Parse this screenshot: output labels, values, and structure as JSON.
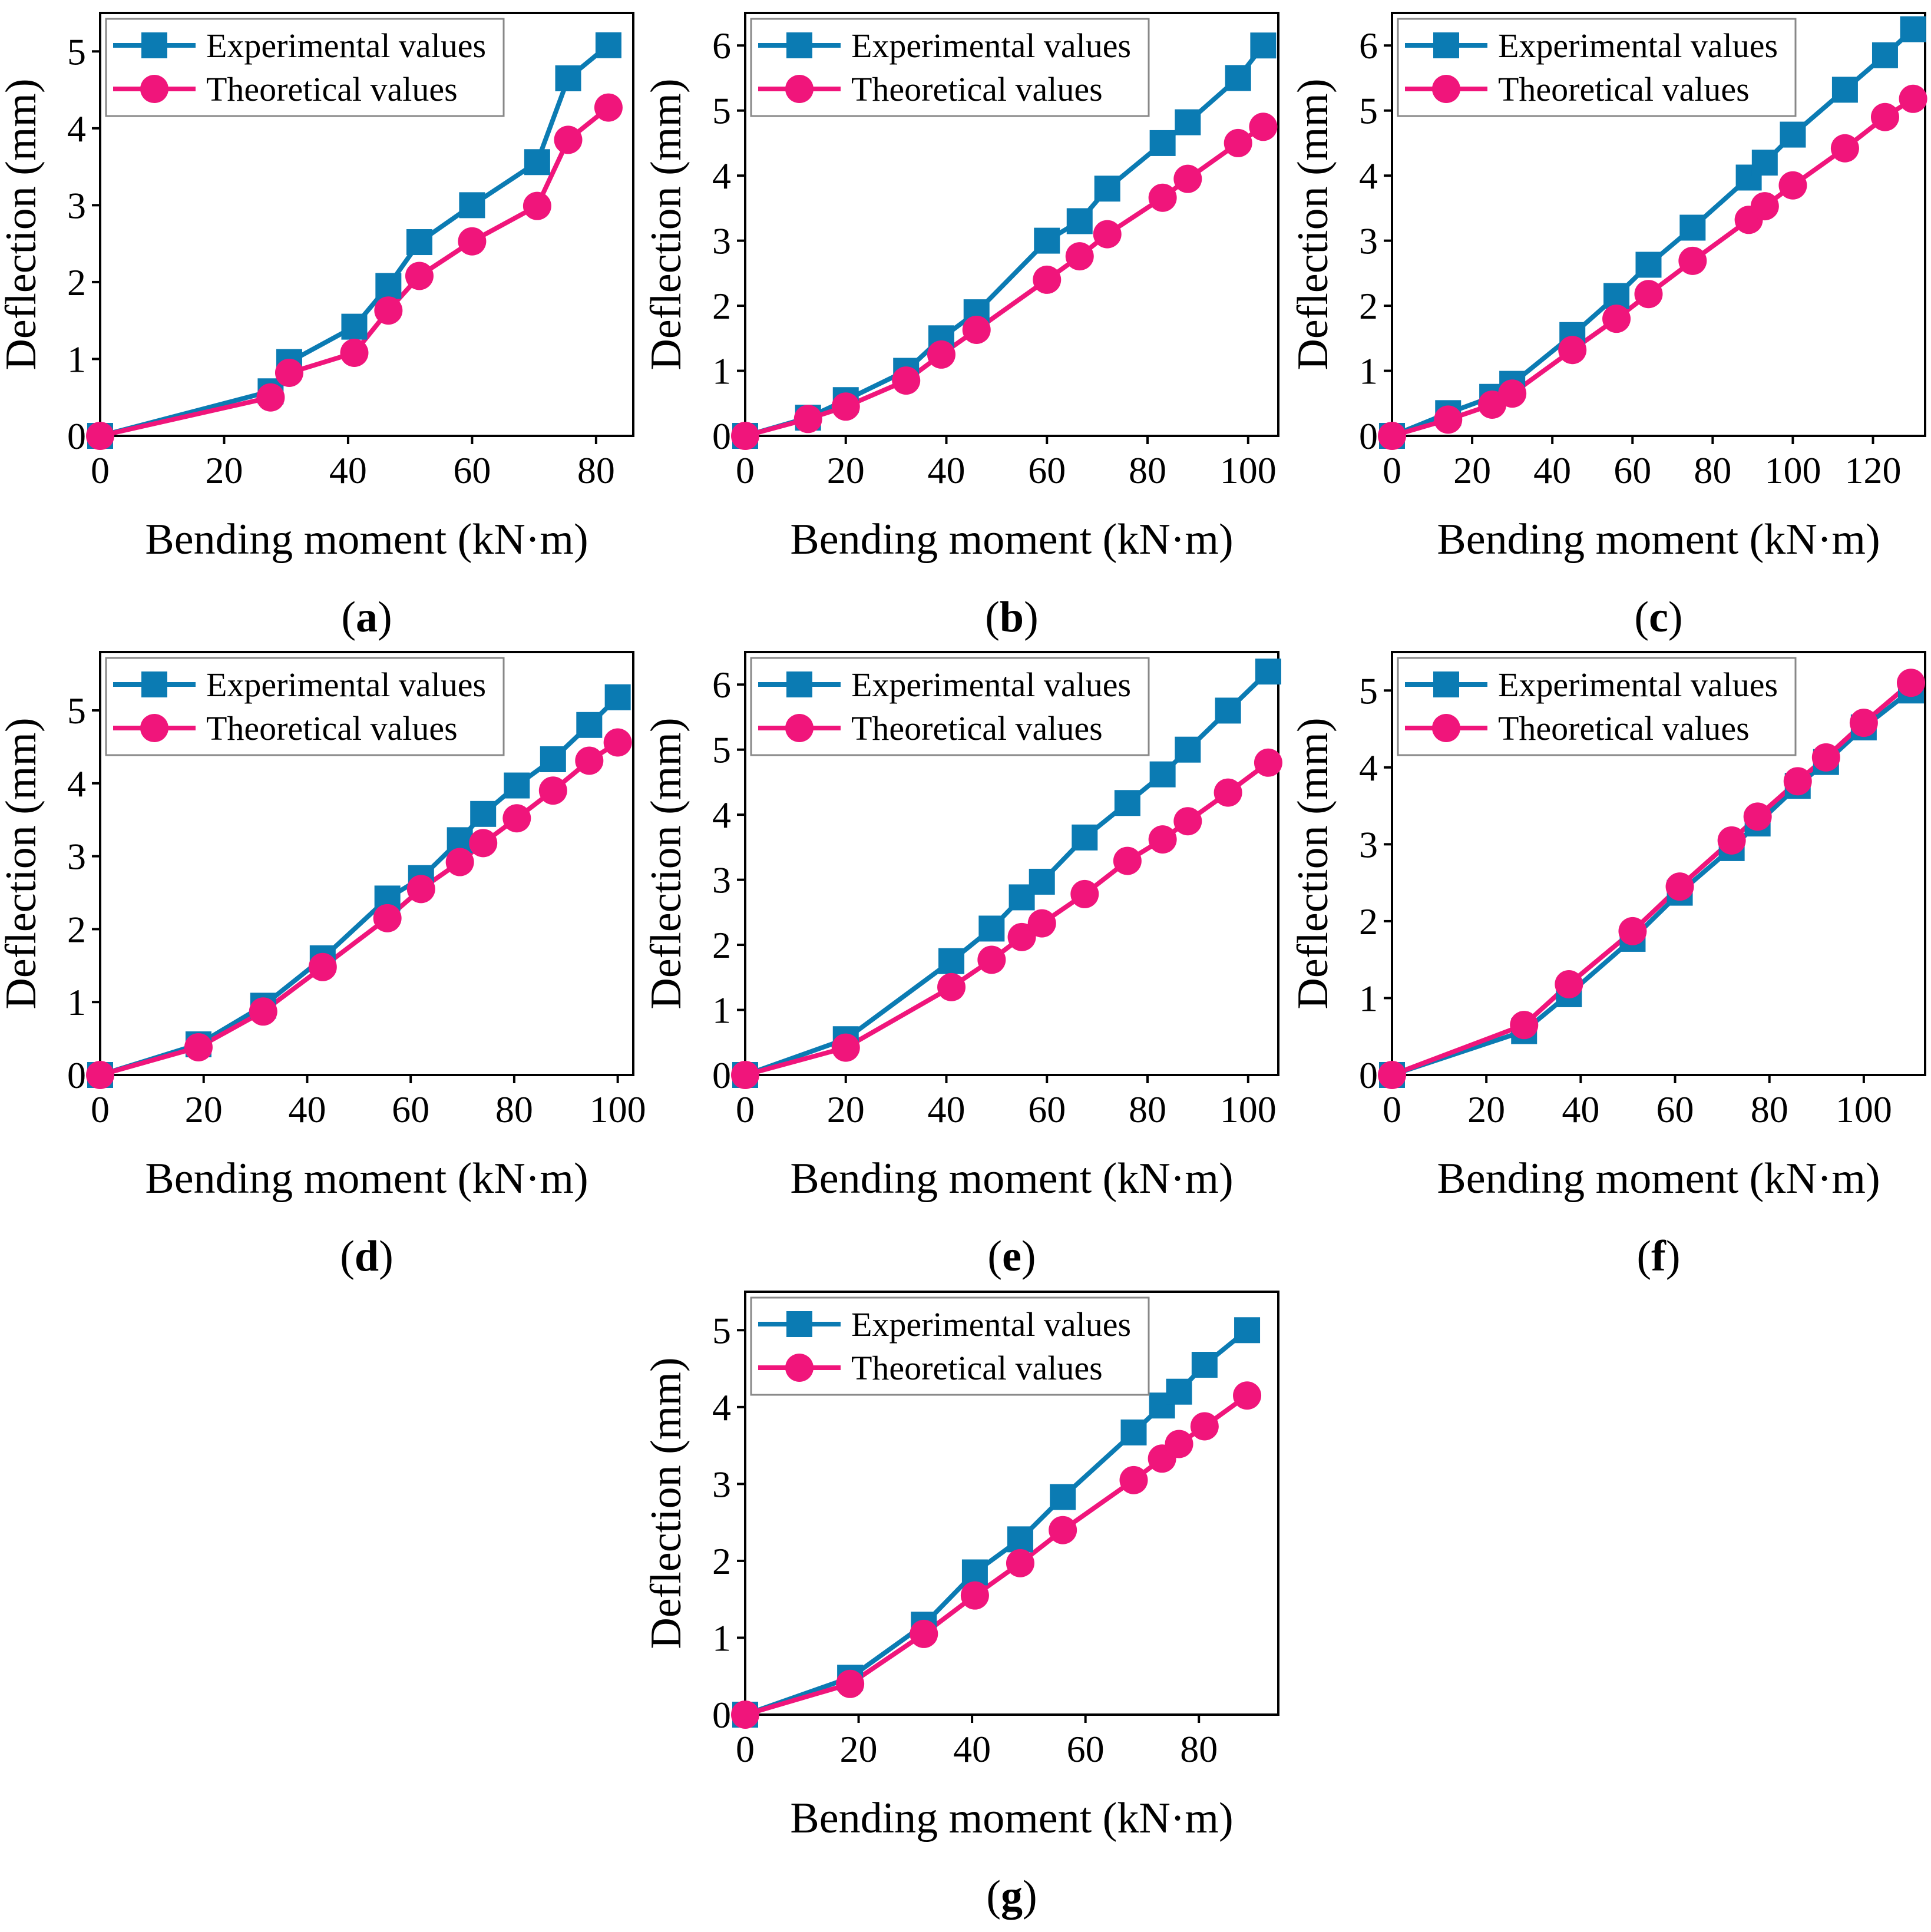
{
  "figure": {
    "colors": {
      "experimental": "#0b7bb3",
      "theoretical": "#f0157b",
      "axis": "#000000",
      "background": "#ffffff"
    },
    "legend_labels": {
      "experimental": "Experimental values",
      "theoretical": "Theoretical values"
    }
  },
  "chart_data": [
    {
      "panel": "a",
      "type": "line",
      "xlabel": "Bending moment (kN·m)",
      "ylabel": "Deflection (mm)",
      "xlim": [
        0,
        86
      ],
      "ylim": [
        0,
        5.5
      ],
      "xticks": [
        0,
        20,
        40,
        60,
        80
      ],
      "yticks": [
        0,
        1,
        2,
        3,
        4,
        5
      ],
      "legend": "top-left",
      "grid": false,
      "series": [
        {
          "name": "Experimental values",
          "marker": "square",
          "x": [
            0,
            27.5,
            30.5,
            41,
            46.5,
            51.5,
            60,
            70.5,
            75.5,
            82
          ],
          "y": [
            0,
            0.58,
            0.96,
            1.42,
            1.95,
            2.52,
            3.0,
            3.56,
            4.65,
            5.08
          ]
        },
        {
          "name": "Theoretical values",
          "marker": "circle",
          "x": [
            0,
            27.5,
            30.5,
            41,
            46.5,
            51.5,
            60,
            70.5,
            75.5,
            82
          ],
          "y": [
            0,
            0.5,
            0.82,
            1.08,
            1.63,
            2.08,
            2.53,
            2.99,
            3.85,
            4.27
          ]
        }
      ]
    },
    {
      "panel": "b",
      "type": "line",
      "xlabel": "Bending moment (kN·m)",
      "ylabel": "Deflection (mm)",
      "xlim": [
        0,
        106
      ],
      "ylim": [
        0,
        6.5
      ],
      "xticks": [
        0,
        20,
        40,
        60,
        80,
        100
      ],
      "yticks": [
        0,
        1,
        2,
        3,
        4,
        5,
        6
      ],
      "legend": "top-left",
      "grid": false,
      "series": [
        {
          "name": "Experimental values",
          "marker": "square",
          "x": [
            0,
            12.5,
            20,
            32,
            39,
            46,
            60,
            66.5,
            72,
            83,
            88,
            98,
            103
          ],
          "y": [
            0,
            0.28,
            0.55,
            1.0,
            1.5,
            1.9,
            3.0,
            3.3,
            3.8,
            4.5,
            4.82,
            5.5,
            6.0
          ]
        },
        {
          "name": "Theoretical values",
          "marker": "circle",
          "x": [
            0,
            12.5,
            20,
            32,
            39,
            46,
            60,
            66.5,
            72,
            83,
            88,
            98,
            103
          ],
          "y": [
            0,
            0.26,
            0.45,
            0.85,
            1.25,
            1.63,
            2.4,
            2.76,
            3.1,
            3.66,
            3.95,
            4.5,
            4.75
          ]
        }
      ]
    },
    {
      "panel": "c",
      "type": "line",
      "xlabel": "Bending moment (kN·m)",
      "ylabel": "Deflection (mm)",
      "xlim": [
        0,
        133
      ],
      "ylim": [
        0,
        6.5
      ],
      "xticks": [
        0,
        20,
        40,
        60,
        80,
        100,
        120
      ],
      "yticks": [
        0,
        1,
        2,
        3,
        4,
        5,
        6
      ],
      "legend": "top-left",
      "grid": false,
      "series": [
        {
          "name": "Experimental values",
          "marker": "square",
          "x": [
            0,
            14,
            25,
            30,
            45,
            56,
            64,
            75,
            89,
            93,
            100,
            113,
            123,
            130
          ],
          "y": [
            0,
            0.35,
            0.6,
            0.8,
            1.55,
            2.15,
            2.63,
            3.2,
            3.97,
            4.2,
            4.63,
            5.32,
            5.85,
            6.25
          ]
        },
        {
          "name": "Theoretical values",
          "marker": "circle",
          "x": [
            0,
            14,
            25,
            30,
            45,
            56,
            64,
            75,
            89,
            93,
            100,
            113,
            123,
            130
          ],
          "y": [
            0,
            0.25,
            0.48,
            0.65,
            1.32,
            1.8,
            2.18,
            2.69,
            3.32,
            3.53,
            3.85,
            4.42,
            4.9,
            5.18
          ]
        }
      ]
    },
    {
      "panel": "d",
      "type": "line",
      "xlabel": "Bending moment (kN·m)",
      "ylabel": "Deflection (mm)",
      "xlim": [
        0,
        103
      ],
      "ylim": [
        0,
        5.8
      ],
      "xticks": [
        0,
        20,
        40,
        60,
        80,
        100
      ],
      "yticks": [
        0,
        1,
        2,
        3,
        4,
        5
      ],
      "legend": "top-left",
      "grid": false,
      "series": [
        {
          "name": "Experimental values",
          "marker": "square",
          "x": [
            0,
            19,
            31.5,
            43,
            55.5,
            62,
            69.5,
            74,
            80.5,
            87.5,
            94.5,
            100
          ],
          "y": [
            0,
            0.42,
            0.95,
            1.6,
            2.42,
            2.7,
            3.22,
            3.58,
            3.97,
            4.33,
            4.8,
            5.18
          ]
        },
        {
          "name": "Theoretical values",
          "marker": "circle",
          "x": [
            0,
            19,
            31.5,
            43,
            55.5,
            62,
            69.5,
            74,
            80.5,
            87.5,
            94.5,
            100
          ],
          "y": [
            0,
            0.38,
            0.87,
            1.48,
            2.15,
            2.55,
            2.92,
            3.18,
            3.52,
            3.9,
            4.31,
            4.56
          ]
        }
      ]
    },
    {
      "panel": "e",
      "type": "line",
      "xlabel": "Bending moment (kN·m)",
      "ylabel": "Deflection (mm)",
      "xlim": [
        0,
        106
      ],
      "ylim": [
        0,
        6.5
      ],
      "xticks": [
        0,
        20,
        40,
        60,
        80,
        100
      ],
      "yticks": [
        0,
        1,
        2,
        3,
        4,
        5,
        6
      ],
      "legend": "top-left",
      "grid": false,
      "series": [
        {
          "name": "Experimental values",
          "marker": "square",
          "x": [
            0,
            20,
            41,
            49,
            55,
            59,
            67.5,
            76,
            83,
            88,
            96,
            104
          ],
          "y": [
            0,
            0.55,
            1.75,
            2.25,
            2.73,
            2.97,
            3.65,
            4.18,
            4.62,
            5.0,
            5.6,
            6.2
          ]
        },
        {
          "name": "Theoretical values",
          "marker": "circle",
          "x": [
            0,
            20,
            41,
            49,
            55,
            59,
            67.5,
            76,
            83,
            88,
            96,
            104
          ],
          "y": [
            0,
            0.42,
            1.35,
            1.77,
            2.12,
            2.33,
            2.78,
            3.29,
            3.62,
            3.9,
            4.34,
            4.8
          ]
        }
      ]
    },
    {
      "panel": "f",
      "type": "line",
      "xlabel": "Bending moment (kN·m)",
      "ylabel": "Deflection (mm)",
      "xlim": [
        0,
        113
      ],
      "ylim": [
        0,
        5.5
      ],
      "xticks": [
        0,
        20,
        40,
        60,
        80,
        100
      ],
      "yticks": [
        0,
        1,
        2,
        3,
        4,
        5
      ],
      "legend": "top-left",
      "grid": false,
      "series": [
        {
          "name": "Experimental values",
          "marker": "square",
          "x": [
            0,
            28,
            37.5,
            51,
            61,
            72,
            77.5,
            86,
            92,
            100,
            110
          ],
          "y": [
            0,
            0.57,
            1.05,
            1.77,
            2.37,
            2.95,
            3.27,
            3.76,
            4.07,
            4.52,
            5.0
          ]
        },
        {
          "name": "Theoretical values",
          "marker": "circle",
          "x": [
            0,
            28,
            37.5,
            51,
            61,
            72,
            77.5,
            86,
            92,
            100,
            110
          ],
          "y": [
            0,
            0.65,
            1.18,
            1.87,
            2.45,
            3.05,
            3.36,
            3.82,
            4.13,
            4.58,
            5.1
          ]
        }
      ]
    },
    {
      "panel": "g",
      "type": "line",
      "xlabel": "Bending moment (kN·m)",
      "ylabel": "Deflection (mm)",
      "xlim": [
        0,
        94
      ],
      "ylim": [
        0,
        5.5
      ],
      "xticks": [
        0,
        20,
        40,
        60,
        80
      ],
      "yticks": [
        0,
        1,
        2,
        3,
        4,
        5
      ],
      "legend": "top-left",
      "grid": false,
      "series": [
        {
          "name": "Experimental values",
          "marker": "square",
          "x": [
            0,
            18.5,
            31.5,
            40.5,
            48.5,
            56,
            68.5,
            73.5,
            76.5,
            81,
            88.5
          ],
          "y": [
            0,
            0.48,
            1.17,
            1.85,
            2.28,
            2.83,
            3.67,
            4.02,
            4.2,
            4.55,
            5.0
          ]
        },
        {
          "name": "Theoretical values",
          "marker": "circle",
          "x": [
            0,
            18.5,
            31.5,
            40.5,
            48.5,
            56,
            68.5,
            73.5,
            76.5,
            81,
            88.5
          ],
          "y": [
            0,
            0.4,
            1.05,
            1.55,
            1.97,
            2.4,
            3.05,
            3.33,
            3.52,
            3.75,
            4.15
          ]
        }
      ]
    }
  ]
}
